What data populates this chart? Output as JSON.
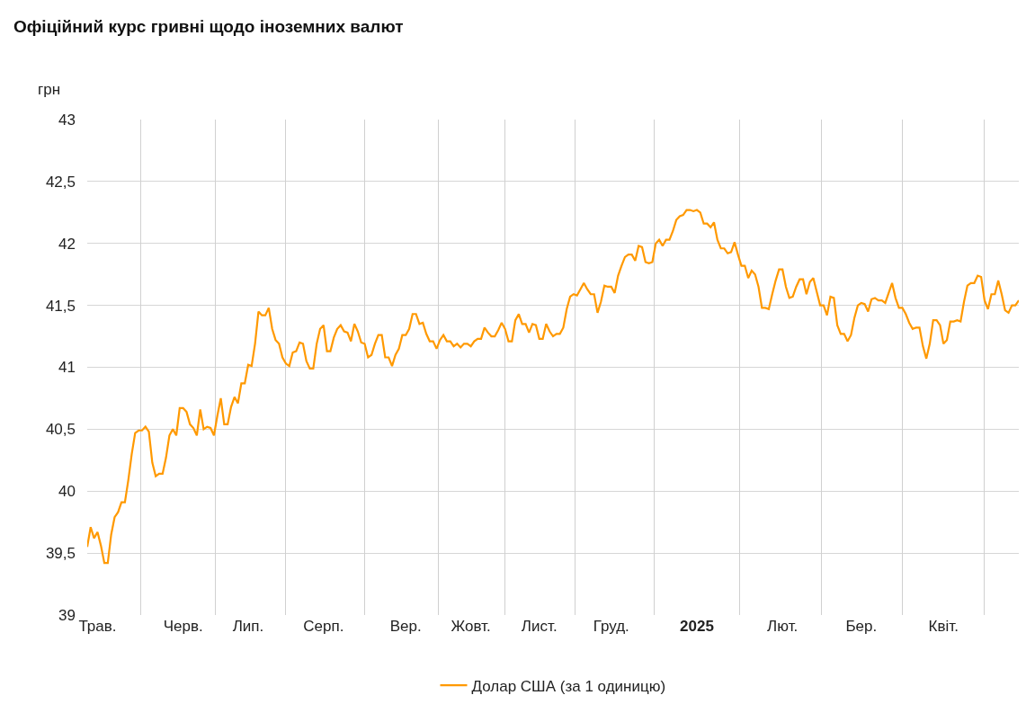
{
  "chart_data": {
    "type": "line",
    "title": "Офіційний курс гривні щодо іноземних валют",
    "ylabel": "грн",
    "categories": [
      null,
      null,
      null,
      "Трав.",
      null,
      null,
      null,
      null,
      null,
      null,
      null,
      null,
      null,
      null,
      null,
      null,
      null,
      null,
      null,
      null,
      null,
      null,
      null,
      null,
      null,
      null,
      null,
      null,
      "Черв.",
      null,
      null,
      null,
      null,
      null,
      null,
      null,
      null,
      null,
      null,
      null,
      null,
      null,
      null,
      null,
      null,
      null,
      null,
      "Лип.",
      null,
      null,
      null,
      null,
      null,
      null,
      null,
      null,
      null,
      null,
      null,
      null,
      null,
      null,
      null,
      null,
      null,
      null,
      null,
      null,
      null,
      "Серп.",
      null,
      null,
      null,
      null,
      null,
      null,
      null,
      null,
      null,
      null,
      null,
      null,
      null,
      null,
      null,
      null,
      null,
      null,
      null,
      null,
      null,
      null,
      null,
      "Вер.",
      null,
      null,
      null,
      null,
      null,
      null,
      null,
      null,
      null,
      null,
      null,
      null,
      null,
      null,
      null,
      null,
      null,
      null,
      "Жовт.",
      null,
      null,
      null,
      null,
      null,
      null,
      null,
      null,
      null,
      null,
      null,
      null,
      null,
      null,
      null,
      null,
      null,
      null,
      null,
      "Лист.",
      null,
      null,
      null,
      null,
      null,
      null,
      null,
      null,
      null,
      null,
      null,
      null,
      null,
      null,
      null,
      null,
      null,
      null,
      null,
      null,
      "Груд.",
      null,
      null,
      null,
      null,
      null,
      null,
      null,
      null,
      null,
      null,
      null,
      null,
      null,
      null,
      null,
      null,
      null,
      null,
      null,
      null,
      null,
      null,
      null,
      null,
      "2025",
      null,
      null,
      null,
      null,
      null,
      null,
      null,
      null,
      null,
      null,
      null,
      null,
      null,
      null,
      null,
      null,
      null,
      null,
      null,
      null,
      null,
      null,
      null,
      null,
      "Лют.",
      null,
      null,
      null,
      null,
      null,
      null,
      null,
      null,
      null,
      null,
      null,
      null,
      null,
      null,
      null,
      null,
      null,
      null,
      null,
      null,
      null,
      null,
      "Бер.",
      null,
      null,
      null,
      null,
      null,
      null,
      null,
      null,
      null,
      null,
      null,
      null,
      null,
      null,
      null,
      null,
      null,
      null,
      null,
      null,
      null,
      null,
      null,
      "Квіт.",
      null,
      null,
      null,
      null,
      null,
      null,
      null,
      null,
      null,
      null,
      null,
      null,
      null,
      null,
      null,
      null,
      null,
      null,
      null,
      null,
      null,
      null
    ],
    "series": [
      {
        "name": "Долар США (за 1 одиницю)",
        "color": "#ff9900",
        "values": [
          39.55,
          39.71,
          39.62,
          39.67,
          39.56,
          39.42,
          39.42,
          39.65,
          39.79,
          39.83,
          39.91,
          39.91,
          40.09,
          40.3,
          40.47,
          40.49,
          40.49,
          40.52,
          40.48,
          40.23,
          40.12,
          40.14,
          40.14,
          40.27,
          40.45,
          40.5,
          40.45,
          40.67,
          40.67,
          40.64,
          40.54,
          40.51,
          40.45,
          40.66,
          40.5,
          40.52,
          40.51,
          40.45,
          40.61,
          40.75,
          40.54,
          40.54,
          40.68,
          40.76,
          40.71,
          40.87,
          40.87,
          41.02,
          41.01,
          41.19,
          41.45,
          41.42,
          41.42,
          41.48,
          41.31,
          41.22,
          41.19,
          41.08,
          41.03,
          41.01,
          41.12,
          41.13,
          41.2,
          41.19,
          41.05,
          40.99,
          40.99,
          41.19,
          41.31,
          41.34,
          41.13,
          41.13,
          41.24,
          41.31,
          41.34,
          41.29,
          41.28,
          41.21,
          41.35,
          41.29,
          41.2,
          41.19,
          41.08,
          41.1,
          41.19,
          41.26,
          41.26,
          41.08,
          41.08,
          41.01,
          41.1,
          41.15,
          41.26,
          41.26,
          41.31,
          41.43,
          41.43,
          41.35,
          41.36,
          41.27,
          41.21,
          41.21,
          41.15,
          41.22,
          41.26,
          41.21,
          41.21,
          41.17,
          41.19,
          41.16,
          41.19,
          41.19,
          41.17,
          41.21,
          41.23,
          41.23,
          41.32,
          41.28,
          41.25,
          41.25,
          41.3,
          41.36,
          41.31,
          41.21,
          41.21,
          41.38,
          41.43,
          41.35,
          41.35,
          41.28,
          41.35,
          41.34,
          41.23,
          41.23,
          41.35,
          41.29,
          41.25,
          41.27,
          41.27,
          41.32,
          41.47,
          41.57,
          41.59,
          41.58,
          41.63,
          41.68,
          41.63,
          41.59,
          41.59,
          41.44,
          41.53,
          41.66,
          41.65,
          41.65,
          41.6,
          41.74,
          41.82,
          41.89,
          41.91,
          41.91,
          41.86,
          41.98,
          41.97,
          41.85,
          41.84,
          41.85,
          42.0,
          42.03,
          41.98,
          42.03,
          42.03,
          42.1,
          42.19,
          42.22,
          42.23,
          42.27,
          42.27,
          42.26,
          42.27,
          42.25,
          42.16,
          42.16,
          42.13,
          42.17,
          42.03,
          41.96,
          41.96,
          41.92,
          41.93,
          42.01,
          41.91,
          41.82,
          41.82,
          41.72,
          41.78,
          41.75,
          41.65,
          41.48,
          41.48,
          41.47,
          41.59,
          41.7,
          41.79,
          41.79,
          41.65,
          41.56,
          41.57,
          41.65,
          41.71,
          41.71,
          41.59,
          41.69,
          41.72,
          41.61,
          41.5,
          41.5,
          41.42,
          41.57,
          41.56,
          41.34,
          41.27,
          41.27,
          41.21,
          41.26,
          41.4,
          41.5,
          41.52,
          41.51,
          41.45,
          41.55,
          41.56,
          41.54,
          41.54,
          41.52,
          41.6,
          41.68,
          41.56,
          41.48,
          41.48,
          41.43,
          41.36,
          41.31,
          41.32,
          41.32,
          41.17,
          41.07,
          41.19,
          41.38,
          41.38,
          41.34,
          41.19,
          41.22,
          41.37,
          41.37,
          41.38,
          41.37,
          41.53,
          41.66,
          41.68,
          41.68,
          41.74,
          41.73,
          41.54,
          41.47,
          41.59,
          41.59,
          41.7,
          41.59,
          41.46,
          41.44,
          41.5,
          41.5,
          41.54
        ]
      }
    ],
    "ylim": [
      39,
      43
    ],
    "yticks": [
      39,
      {
        "value": 39.5,
        "label": "39,5"
      },
      40,
      {
        "value": 40.5,
        "label": "40,5"
      },
      41,
      {
        "value": 41.5,
        "label": "41,5"
      },
      42,
      {
        "value": 42.5,
        "label": "42,5"
      },
      43
    ],
    "grid": true,
    "legend": "bottom",
    "line_style": "solid",
    "marker": "none"
  }
}
